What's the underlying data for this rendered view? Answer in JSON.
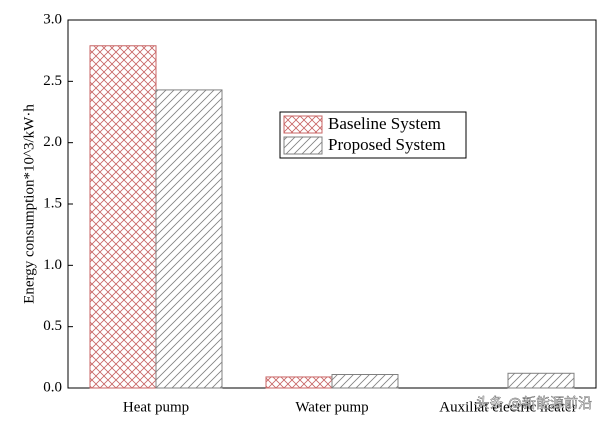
{
  "chart_data": {
    "type": "bar",
    "ylabel": "Energy consumption*10^3/kW·h",
    "categories": [
      "Heat pump",
      "Water pump",
      "Auxiliat electric heater"
    ],
    "series": [
      {
        "name": "Baseline System",
        "color": "#c86464",
        "pattern": "crosshatch",
        "values": [
          2.79,
          0.09,
          0
        ]
      },
      {
        "name": "Proposed System",
        "color": "#808080",
        "pattern": "diagonal",
        "values": [
          2.43,
          0.11,
          0.12
        ]
      }
    ],
    "ylim": [
      0,
      3.0
    ],
    "yticks": [
      {
        "value": 0,
        "label": "0.0"
      },
      {
        "value": 0.5,
        "label": "0.5"
      },
      {
        "value": 1.0,
        "label": "1.0"
      },
      {
        "value": 1.5,
        "label": "1.5"
      },
      {
        "value": 2.0,
        "label": "2.0"
      },
      {
        "value": 2.5,
        "label": "2.5"
      },
      {
        "value": 3.0,
        "label": "3.0"
      }
    ],
    "watermark": "头条 @新能源前沿"
  }
}
